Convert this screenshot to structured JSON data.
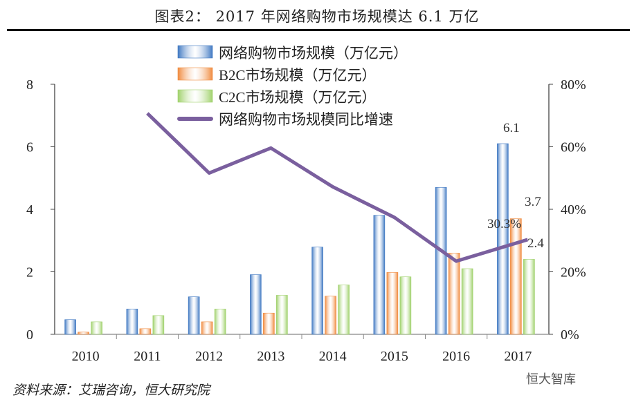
{
  "title": "图表2：  2017 年网络购物市场规模达 6.1 万亿",
  "source": "资料来源：艾瑞咨询，恒大研究院",
  "watermark": "恒大智库",
  "chart_data": {
    "type": "bar",
    "categories": [
      "2010",
      "2011",
      "2012",
      "2013",
      "2014",
      "2015",
      "2016",
      "2017"
    ],
    "series": [
      {
        "name": "网络购物市场规模（万亿元）",
        "type": "bar",
        "axis": "left",
        "color": "#3f78c2",
        "values": [
          0.47,
          0.81,
          1.2,
          1.91,
          2.79,
          3.81,
          4.7,
          6.1
        ]
      },
      {
        "name": "B2C市场规模（万亿元）",
        "type": "bar",
        "axis": "left",
        "color": "#f08a3e",
        "values": [
          0.07,
          0.18,
          0.4,
          0.68,
          1.22,
          1.98,
          2.6,
          3.7
        ]
      },
      {
        "name": "C2C市场规模（万亿元）",
        "type": "bar",
        "axis": "left",
        "color": "#9fd16a",
        "values": [
          0.4,
          0.6,
          0.81,
          1.25,
          1.58,
          1.84,
          2.1,
          2.4
        ]
      },
      {
        "name": "网络购物市场规模同比增速",
        "type": "line",
        "axis": "right",
        "color": "#7a5f9e",
        "values": [
          null,
          70.7,
          51.6,
          59.6,
          47.2,
          37.4,
          23.4,
          30.3
        ]
      }
    ],
    "data_labels": [
      {
        "series": 0,
        "index": 7,
        "text": "6.1"
      },
      {
        "series": 1,
        "index": 7,
        "text": "3.7"
      },
      {
        "series": 2,
        "index": 7,
        "text": "2.4"
      },
      {
        "series": 3,
        "index": 7,
        "text": "30.3%"
      }
    ],
    "ylim_left": [
      0,
      8
    ],
    "yticks_left": [
      "0",
      "2",
      "4",
      "6",
      "8"
    ],
    "ylim_right": [
      0,
      80
    ],
    "yticks_right": [
      "0%",
      "20%",
      "40%",
      "60%",
      "80%"
    ],
    "grid": false,
    "legend_placement": "top-center"
  }
}
